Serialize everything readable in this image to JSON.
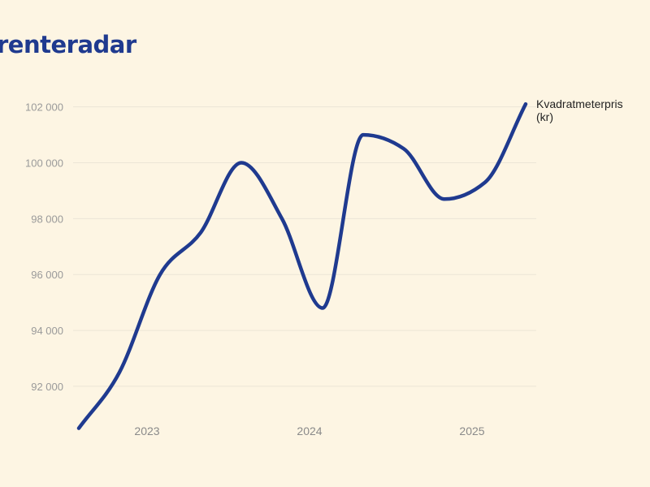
{
  "brand": {
    "name": "renteradar"
  },
  "chart_data": {
    "type": "line",
    "title": "",
    "xlabel": "",
    "ylabel": "",
    "x_ticks": [
      {
        "label": "2023",
        "x": 2023.0
      },
      {
        "label": "2024",
        "x": 2024.0
      },
      {
        "label": "2025",
        "x": 2025.0
      }
    ],
    "y_ticks": [
      {
        "label": "92 000",
        "value": 92000
      },
      {
        "label": "94 000",
        "value": 94000
      },
      {
        "label": "96 000",
        "value": 96000
      },
      {
        "label": "98 000",
        "value": 98000
      },
      {
        "label": "100 000",
        "value": 100000
      },
      {
        "label": "102 000",
        "value": 102000
      }
    ],
    "xlim": [
      2022.58,
      2025.33
    ],
    "ylim": [
      90400,
      102600
    ],
    "series": [
      {
        "name": "Kvadratmeterpris (kr)",
        "label_lines": [
          "Kvadratmeterpris",
          "(kr)"
        ],
        "color": "#1f3a8f",
        "points": [
          {
            "x": 2022.58,
            "y": 90500
          },
          {
            "x": 2022.83,
            "y": 92500
          },
          {
            "x": 2023.08,
            "y": 96000
          },
          {
            "x": 2023.33,
            "y": 97500
          },
          {
            "x": 2023.58,
            "y": 100000
          },
          {
            "x": 2023.83,
            "y": 98000
          },
          {
            "x": 2024.08,
            "y": 94800
          },
          {
            "x": 2024.33,
            "y": 101000
          },
          {
            "x": 2024.58,
            "y": 100500
          },
          {
            "x": 2024.83,
            "y": 98700
          },
          {
            "x": 2025.08,
            "y": 99300
          },
          {
            "x": 2025.33,
            "y": 102100
          }
        ]
      }
    ]
  }
}
